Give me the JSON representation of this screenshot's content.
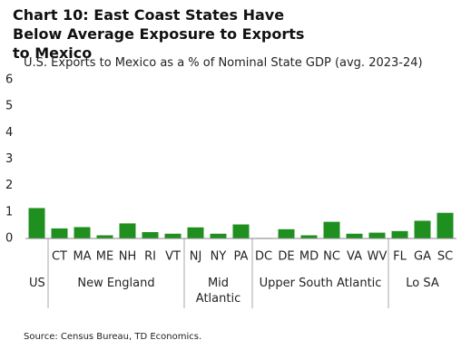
{
  "chart_data": {
    "type": "bar",
    "title": "Chart 10: East Coast States Have Below Average Exposure to Exports to Mexico",
    "subtitle": "U.S. Exports to Mexico as a % of Nominal State GDP (avg. 2023-24)",
    "source": "Source: Census Bureau, TD Economics.",
    "color": "#1f8f1f",
    "ylim": [
      0,
      6
    ],
    "yticks": [
      0,
      1,
      2,
      3,
      4,
      5,
      6
    ],
    "groups": [
      {
        "label": "US",
        "categories": [
          null
        ],
        "values": [
          1.15
        ]
      },
      {
        "label": "New England",
        "categories": [
          "CT",
          "MA",
          "ME",
          "NH",
          "RI",
          "VT"
        ],
        "values": [
          0.38,
          0.43,
          0.12,
          0.57,
          0.24,
          0.18
        ]
      },
      {
        "label": "Mid Atlantic",
        "categories": [
          "NJ",
          "NY",
          "PA"
        ],
        "values": [
          0.42,
          0.18,
          0.53
        ]
      },
      {
        "label": "Upper South Atlantic",
        "categories": [
          "DC",
          "DE",
          "MD",
          "NC",
          "VA",
          "WV"
        ],
        "values": [
          0.02,
          0.35,
          0.12,
          0.63,
          0.18,
          0.22
        ]
      },
      {
        "label": "Lo SA",
        "categories": [
          "FL",
          "GA",
          "SC"
        ],
        "values": [
          0.28,
          0.67,
          0.97
        ]
      }
    ]
  }
}
